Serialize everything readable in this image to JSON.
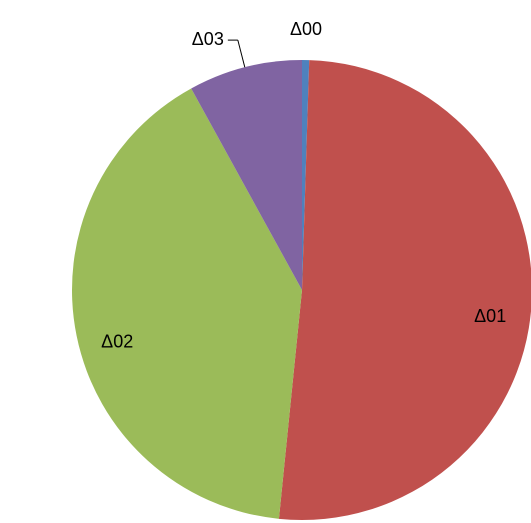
{
  "chart_data": {
    "type": "pie",
    "categories": [
      "Δ00",
      "Δ01",
      "Δ02",
      "Δ03"
    ],
    "values": [
      0.5,
      51.1,
      40.4,
      8.0
    ],
    "colors": [
      "#4f81bd",
      "#c0504d",
      "#9bbb59",
      "#8064a2"
    ]
  }
}
